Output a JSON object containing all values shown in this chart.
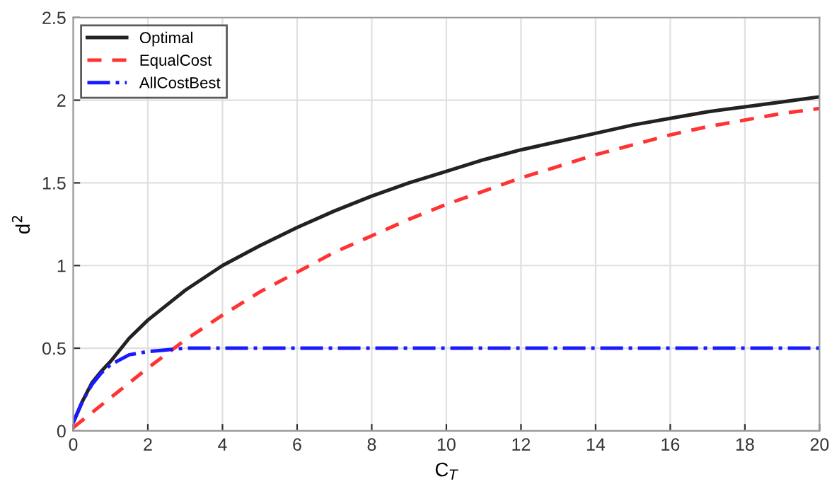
{
  "chart_data": {
    "type": "line",
    "xlabel": "C$_{T}$",
    "ylabel": "d$^{2}$",
    "xlim": [
      0,
      20
    ],
    "ylim": [
      0,
      2.5
    ],
    "xticks": [
      0,
      2,
      4,
      6,
      8,
      10,
      12,
      14,
      16,
      18,
      20
    ],
    "yticks": [
      0,
      0.5,
      1,
      1.5,
      2,
      2.5
    ],
    "grid": true,
    "legend": "top left",
    "series": [
      {
        "name": "Optimal",
        "color": "#222222",
        "line_style": "solid",
        "x": [
          0,
          0.25,
          0.5,
          0.75,
          1,
          1.5,
          2,
          3,
          4,
          5,
          6,
          7,
          8,
          9,
          10,
          11,
          12,
          13,
          14,
          15,
          16,
          17,
          18,
          19,
          20
        ],
        "values": [
          0.05,
          0.18,
          0.29,
          0.36,
          0.42,
          0.56,
          0.67,
          0.85,
          1.0,
          1.12,
          1.23,
          1.33,
          1.42,
          1.5,
          1.57,
          1.64,
          1.7,
          1.75,
          1.8,
          1.85,
          1.89,
          1.93,
          1.96,
          1.99,
          2.02
        ]
      },
      {
        "name": "EqualCost",
        "color": "#ff3333",
        "line_style": "dashed",
        "x": [
          0,
          0.5,
          1,
          1.5,
          2,
          3,
          4,
          5,
          6,
          7,
          8,
          9,
          10,
          11,
          12,
          13,
          14,
          15,
          16,
          17,
          18,
          19,
          20
        ],
        "values": [
          0.02,
          0.11,
          0.2,
          0.29,
          0.38,
          0.55,
          0.7,
          0.84,
          0.96,
          1.08,
          1.18,
          1.28,
          1.37,
          1.45,
          1.53,
          1.6,
          1.67,
          1.73,
          1.79,
          1.84,
          1.88,
          1.92,
          1.95
        ]
      },
      {
        "name": "AllCostBest",
        "color": "#1a1aff",
        "line_style": "dashdot",
        "x": [
          0,
          0.25,
          0.5,
          0.75,
          1,
          1.25,
          1.5,
          2,
          2.5,
          3,
          4,
          6,
          10,
          20
        ],
        "values": [
          0.05,
          0.18,
          0.28,
          0.35,
          0.4,
          0.43,
          0.46,
          0.48,
          0.49,
          0.5,
          0.5,
          0.5,
          0.5,
          0.5
        ]
      }
    ]
  }
}
